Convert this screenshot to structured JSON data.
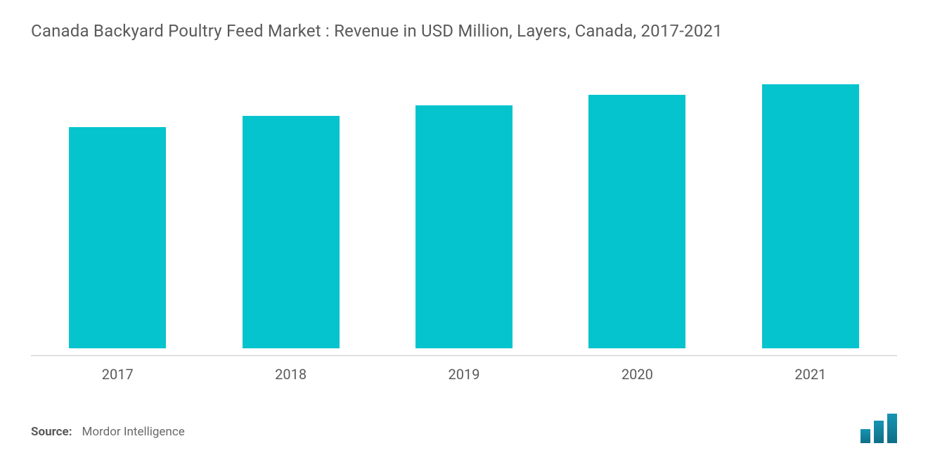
{
  "chart": {
    "type": "bar",
    "title": "Canada Backyard Poultry Feed Market : Revenue in USD Million, Layers, Canada, 2017-2021",
    "title_fontsize": 24,
    "title_color": "#5a5a5a",
    "categories": [
      "2017",
      "2018",
      "2019",
      "2020",
      "2021"
    ],
    "values": [
      84,
      88,
      92,
      96,
      100
    ],
    "ylim": [
      0,
      100
    ],
    "bar_color": "#06c4cd",
    "bar_width_pct": 56,
    "background_color": "#ffffff",
    "baseline_color": "#c9c9c9",
    "xlabel_fontsize": 20,
    "xlabel_color": "#5a5a5a",
    "show_y_axis": false,
    "show_grid": false
  },
  "source": {
    "label": "Source:",
    "value": "Mordor Intelligence",
    "fontsize": 17,
    "label_weight": 700
  },
  "logo": {
    "bar_color_top": "#1695b3",
    "bar_color_bottom": "#0f6e86",
    "heights": [
      20,
      32,
      42
    ]
  }
}
